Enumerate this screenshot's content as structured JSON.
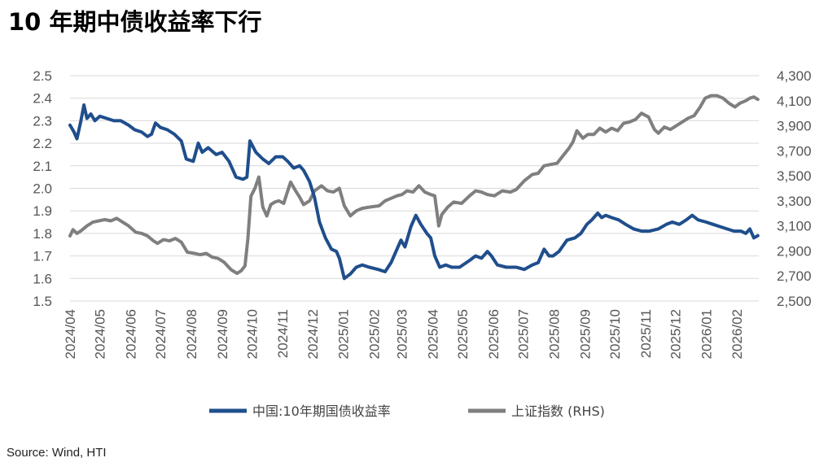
{
  "title": "10 年期中债收益率下行",
  "source": "Source: Wind, HTI",
  "colors": {
    "cn10y": "#1f4e8c",
    "sse": "#7f7f7f",
    "grid": "#d9d9d9",
    "axis": "#555555"
  },
  "chart_data": {
    "type": "line",
    "title": "10 年期中债收益率下行",
    "x_ticks": [
      "2024/04",
      "2024/05",
      "2024/06",
      "2024/07",
      "2024/08",
      "2024/09",
      "2024/10",
      "2024/11",
      "2024/12",
      "2025/01",
      "2025/02",
      "2025/03",
      "2025/04",
      "2025/05",
      "2025/06",
      "2025/07",
      "2025/08",
      "2025/09",
      "2025/10",
      "2025/11",
      "2025/12",
      "2026/01",
      "2026/02"
    ],
    "y_left": {
      "min": 1.5,
      "max": 2.5,
      "ticks": [
        "2.5",
        "2.4",
        "2.3",
        "2.2",
        "2.1",
        "2.0",
        "1.9",
        "1.8",
        "1.7",
        "1.6",
        "1.5"
      ]
    },
    "y_right": {
      "min": 2500,
      "max": 4300,
      "ticks": [
        "4,300",
        "4,100",
        "3,900",
        "3,700",
        "3,500",
        "3,300",
        "3,100",
        "2,900",
        "2,700",
        "2,500"
      ]
    },
    "grid": "horizontal",
    "legend_position": "bottom",
    "series": [
      {
        "name": "中国:10年期国债收益率",
        "axis": "left",
        "points": [
          [
            "2024-04-01",
            2.28
          ],
          [
            "2024-04-05",
            2.25
          ],
          [
            "2024-04-08",
            2.22
          ],
          [
            "2024-04-12",
            2.3
          ],
          [
            "2024-04-15",
            2.37
          ],
          [
            "2024-04-18",
            2.31
          ],
          [
            "2024-04-22",
            2.33
          ],
          [
            "2024-04-26",
            2.3
          ],
          [
            "2024-05-01",
            2.32
          ],
          [
            "2024-05-08",
            2.31
          ],
          [
            "2024-05-15",
            2.3
          ],
          [
            "2024-05-22",
            2.3
          ],
          [
            "2024-05-30",
            2.28
          ],
          [
            "2024-06-05",
            2.26
          ],
          [
            "2024-06-12",
            2.25
          ],
          [
            "2024-06-18",
            2.23
          ],
          [
            "2024-06-22",
            2.24
          ],
          [
            "2024-06-26",
            2.29
          ],
          [
            "2024-07-01",
            2.27
          ],
          [
            "2024-07-08",
            2.26
          ],
          [
            "2024-07-15",
            2.24
          ],
          [
            "2024-07-22",
            2.21
          ],
          [
            "2024-07-27",
            2.13
          ],
          [
            "2024-08-03",
            2.12
          ],
          [
            "2024-08-08",
            2.2
          ],
          [
            "2024-08-12",
            2.16
          ],
          [
            "2024-08-18",
            2.18
          ],
          [
            "2024-08-26",
            2.15
          ],
          [
            "2024-09-01",
            2.16
          ],
          [
            "2024-09-08",
            2.12
          ],
          [
            "2024-09-15",
            2.05
          ],
          [
            "2024-09-22",
            2.04
          ],
          [
            "2024-09-26",
            2.05
          ],
          [
            "2024-09-29",
            2.21
          ],
          [
            "2024-10-05",
            2.16
          ],
          [
            "2024-10-12",
            2.13
          ],
          [
            "2024-10-18",
            2.11
          ],
          [
            "2024-10-25",
            2.14
          ],
          [
            "2024-11-01",
            2.14
          ],
          [
            "2024-11-06",
            2.12
          ],
          [
            "2024-11-12",
            2.09
          ],
          [
            "2024-11-18",
            2.1
          ],
          [
            "2024-11-22",
            2.08
          ],
          [
            "2024-11-28",
            2.03
          ],
          [
            "2024-12-03",
            1.96
          ],
          [
            "2024-12-08",
            1.85
          ],
          [
            "2024-12-14",
            1.78
          ],
          [
            "2024-12-20",
            1.73
          ],
          [
            "2024-12-25",
            1.72
          ],
          [
            "2024-12-28",
            1.69
          ],
          [
            "2025-01-02",
            1.6
          ],
          [
            "2025-01-08",
            1.62
          ],
          [
            "2025-01-14",
            1.65
          ],
          [
            "2025-01-20",
            1.66
          ],
          [
            "2025-01-27",
            1.65
          ],
          [
            "2025-02-05",
            1.64
          ],
          [
            "2025-02-12",
            1.63
          ],
          [
            "2025-02-18",
            1.67
          ],
          [
            "2025-02-24",
            1.73
          ],
          [
            "2025-02-28",
            1.77
          ],
          [
            "2025-03-04",
            1.74
          ],
          [
            "2025-03-10",
            1.83
          ],
          [
            "2025-03-15",
            1.88
          ],
          [
            "2025-03-20",
            1.84
          ],
          [
            "2025-03-26",
            1.8
          ],
          [
            "2025-03-30",
            1.78
          ],
          [
            "2025-04-03",
            1.7
          ],
          [
            "2025-04-08",
            1.65
          ],
          [
            "2025-04-14",
            1.66
          ],
          [
            "2025-04-20",
            1.65
          ],
          [
            "2025-04-28",
            1.65
          ],
          [
            "2025-05-08",
            1.68
          ],
          [
            "2025-05-14",
            1.7
          ],
          [
            "2025-05-20",
            1.69
          ],
          [
            "2025-05-26",
            1.72
          ],
          [
            "2025-05-30",
            1.7
          ],
          [
            "2025-06-05",
            1.66
          ],
          [
            "2025-06-14",
            1.65
          ],
          [
            "2025-06-24",
            1.65
          ],
          [
            "2025-07-02",
            1.64
          ],
          [
            "2025-07-10",
            1.66
          ],
          [
            "2025-07-16",
            1.67
          ],
          [
            "2025-07-22",
            1.73
          ],
          [
            "2025-07-27",
            1.7
          ],
          [
            "2025-07-31",
            1.7
          ],
          [
            "2025-08-06",
            1.72
          ],
          [
            "2025-08-14",
            1.77
          ],
          [
            "2025-08-22",
            1.78
          ],
          [
            "2025-08-28",
            1.8
          ],
          [
            "2025-09-03",
            1.84
          ],
          [
            "2025-09-08",
            1.86
          ],
          [
            "2025-09-14",
            1.89
          ],
          [
            "2025-09-18",
            1.87
          ],
          [
            "2025-09-22",
            1.88
          ],
          [
            "2025-09-28",
            1.87
          ],
          [
            "2025-10-05",
            1.86
          ],
          [
            "2025-10-12",
            1.84
          ],
          [
            "2025-10-20",
            1.82
          ],
          [
            "2025-10-28",
            1.81
          ],
          [
            "2025-11-05",
            1.81
          ],
          [
            "2025-11-14",
            1.82
          ],
          [
            "2025-11-22",
            1.84
          ],
          [
            "2025-11-28",
            1.85
          ],
          [
            "2025-12-05",
            1.84
          ],
          [
            "2025-12-12",
            1.86
          ],
          [
            "2025-12-18",
            1.88
          ],
          [
            "2025-12-24",
            1.86
          ],
          [
            "2026-01-01",
            1.85
          ],
          [
            "2026-01-08",
            1.84
          ],
          [
            "2026-01-15",
            1.83
          ],
          [
            "2026-01-22",
            1.82
          ],
          [
            "2026-01-29",
            1.81
          ],
          [
            "2026-02-05",
            1.81
          ],
          [
            "2026-02-10",
            1.8
          ],
          [
            "2026-02-14",
            1.82
          ],
          [
            "2026-02-18",
            1.78
          ],
          [
            "2026-02-22",
            1.79
          ]
        ]
      },
      {
        "name": "上证指数 (RHS)",
        "axis": "right",
        "points": [
          [
            "2024-04-01",
            3020
          ],
          [
            "2024-04-04",
            3070
          ],
          [
            "2024-04-08",
            3040
          ],
          [
            "2024-04-12",
            3060
          ],
          [
            "2024-04-18",
            3100
          ],
          [
            "2024-04-24",
            3130
          ],
          [
            "2024-04-30",
            3140
          ],
          [
            "2024-05-06",
            3150
          ],
          [
            "2024-05-12",
            3140
          ],
          [
            "2024-05-18",
            3160
          ],
          [
            "2024-05-24",
            3130
          ],
          [
            "2024-05-30",
            3100
          ],
          [
            "2024-06-06",
            3050
          ],
          [
            "2024-06-12",
            3040
          ],
          [
            "2024-06-18",
            3020
          ],
          [
            "2024-06-24",
            2980
          ],
          [
            "2024-06-28",
            2960
          ],
          [
            "2024-07-04",
            2990
          ],
          [
            "2024-07-10",
            2980
          ],
          [
            "2024-07-16",
            3000
          ],
          [
            "2024-07-22",
            2970
          ],
          [
            "2024-07-28",
            2890
          ],
          [
            "2024-08-04",
            2880
          ],
          [
            "2024-08-10",
            2870
          ],
          [
            "2024-08-16",
            2880
          ],
          [
            "2024-08-22",
            2850
          ],
          [
            "2024-08-28",
            2840
          ],
          [
            "2024-09-03",
            2810
          ],
          [
            "2024-09-10",
            2750
          ],
          [
            "2024-09-16",
            2720
          ],
          [
            "2024-09-20",
            2740
          ],
          [
            "2024-09-24",
            2780
          ],
          [
            "2024-09-27",
            3000
          ],
          [
            "2024-09-30",
            3336
          ],
          [
            "2024-10-04",
            3400
          ],
          [
            "2024-10-08",
            3490
          ],
          [
            "2024-10-12",
            3250
          ],
          [
            "2024-10-16",
            3180
          ],
          [
            "2024-10-20",
            3270
          ],
          [
            "2024-10-24",
            3290
          ],
          [
            "2024-10-28",
            3300
          ],
          [
            "2024-11-02",
            3280
          ],
          [
            "2024-11-06",
            3380
          ],
          [
            "2024-11-09",
            3450
          ],
          [
            "2024-11-14",
            3380
          ],
          [
            "2024-11-18",
            3330
          ],
          [
            "2024-11-22",
            3270
          ],
          [
            "2024-11-28",
            3300
          ],
          [
            "2024-12-03",
            3380
          ],
          [
            "2024-12-10",
            3420
          ],
          [
            "2024-12-16",
            3380
          ],
          [
            "2024-12-22",
            3370
          ],
          [
            "2024-12-28",
            3400
          ],
          [
            "2025-01-02",
            3260
          ],
          [
            "2025-01-08",
            3180
          ],
          [
            "2025-01-14",
            3220
          ],
          [
            "2025-01-20",
            3240
          ],
          [
            "2025-01-27",
            3250
          ],
          [
            "2025-02-06",
            3260
          ],
          [
            "2025-02-12",
            3300
          ],
          [
            "2025-02-18",
            3320
          ],
          [
            "2025-02-24",
            3340
          ],
          [
            "2025-03-01",
            3350
          ],
          [
            "2025-03-06",
            3380
          ],
          [
            "2025-03-12",
            3370
          ],
          [
            "2025-03-18",
            3420
          ],
          [
            "2025-03-24",
            3370
          ],
          [
            "2025-03-30",
            3350
          ],
          [
            "2025-04-03",
            3340
          ],
          [
            "2025-04-07",
            3100
          ],
          [
            "2025-04-10",
            3190
          ],
          [
            "2025-04-16",
            3250
          ],
          [
            "2025-04-22",
            3290
          ],
          [
            "2025-04-30",
            3280
          ],
          [
            "2025-05-08",
            3340
          ],
          [
            "2025-05-14",
            3380
          ],
          [
            "2025-05-20",
            3370
          ],
          [
            "2025-05-26",
            3350
          ],
          [
            "2025-06-02",
            3340
          ],
          [
            "2025-06-10",
            3380
          ],
          [
            "2025-06-18",
            3370
          ],
          [
            "2025-06-24",
            3390
          ],
          [
            "2025-07-02",
            3460
          ],
          [
            "2025-07-10",
            3510
          ],
          [
            "2025-07-16",
            3520
          ],
          [
            "2025-07-22",
            3580
          ],
          [
            "2025-07-28",
            3590
          ],
          [
            "2025-08-04",
            3600
          ],
          [
            "2025-08-10",
            3660
          ],
          [
            "2025-08-16",
            3720
          ],
          [
            "2025-08-20",
            3770
          ],
          [
            "2025-08-24",
            3860
          ],
          [
            "2025-08-30",
            3800
          ],
          [
            "2025-09-04",
            3830
          ],
          [
            "2025-09-10",
            3830
          ],
          [
            "2025-09-16",
            3880
          ],
          [
            "2025-09-22",
            3850
          ],
          [
            "2025-09-28",
            3880
          ],
          [
            "2025-10-04",
            3860
          ],
          [
            "2025-10-10",
            3920
          ],
          [
            "2025-10-16",
            3930
          ],
          [
            "2025-10-22",
            3950
          ],
          [
            "2025-10-28",
            4000
          ],
          [
            "2025-11-04",
            3970
          ],
          [
            "2025-11-10",
            3870
          ],
          [
            "2025-11-14",
            3840
          ],
          [
            "2025-11-20",
            3890
          ],
          [
            "2025-11-26",
            3870
          ],
          [
            "2025-12-02",
            3900
          ],
          [
            "2025-12-08",
            3930
          ],
          [
            "2025-12-14",
            3960
          ],
          [
            "2025-12-20",
            3980
          ],
          [
            "2025-12-26",
            4050
          ],
          [
            "2025-12-31",
            4120
          ],
          [
            "2026-01-06",
            4140
          ],
          [
            "2026-01-12",
            4140
          ],
          [
            "2026-01-18",
            4120
          ],
          [
            "2026-01-24",
            4080
          ],
          [
            "2026-01-30",
            4050
          ],
          [
            "2026-02-04",
            4080
          ],
          [
            "2026-02-10",
            4100
          ],
          [
            "2026-02-14",
            4120
          ],
          [
            "2026-02-18",
            4130
          ],
          [
            "2026-02-22",
            4110
          ]
        ]
      }
    ]
  }
}
